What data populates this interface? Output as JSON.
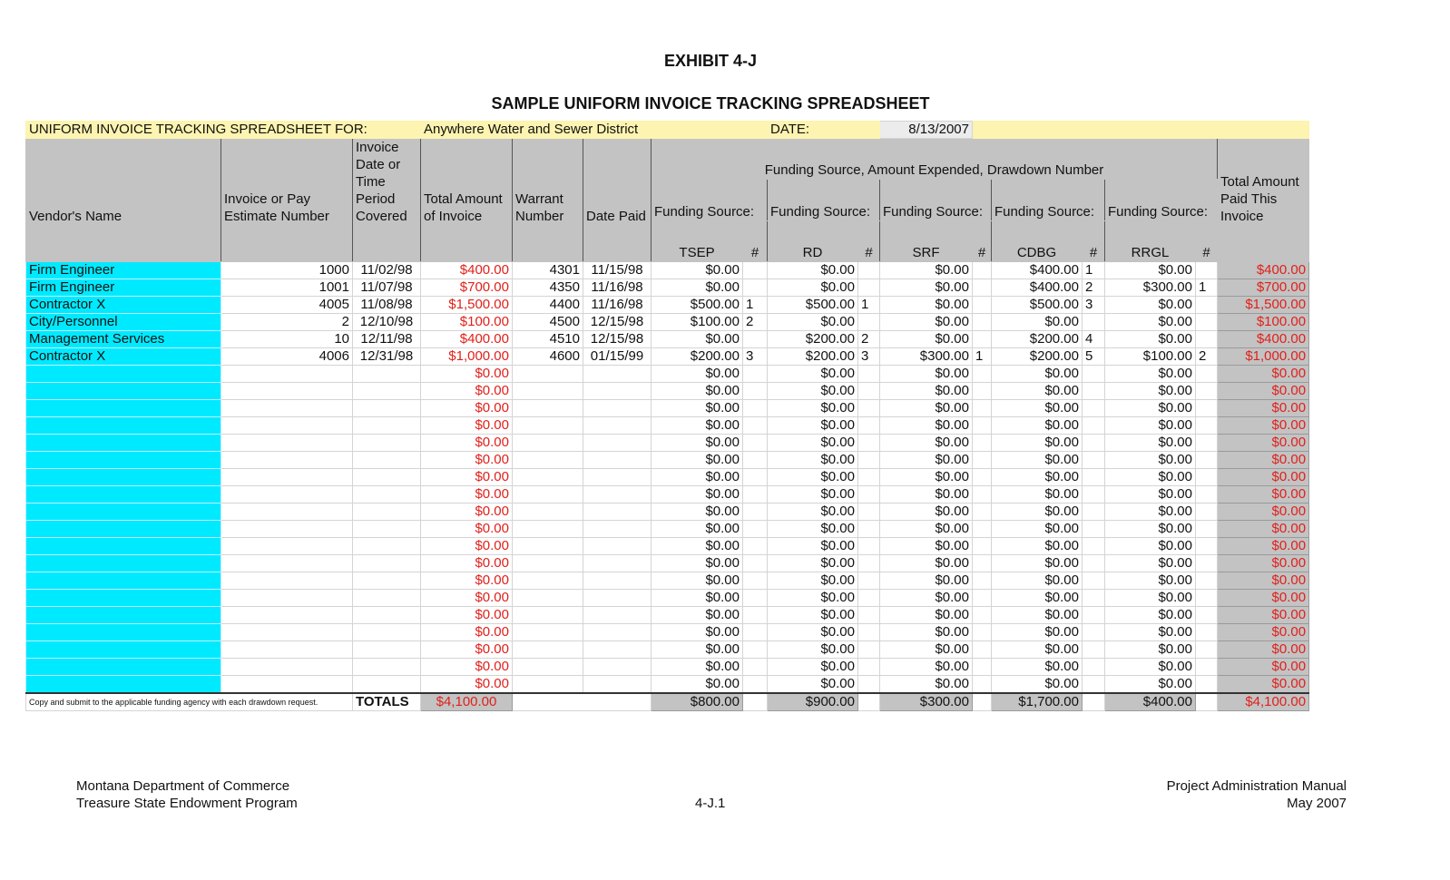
{
  "header": {
    "exhibit": "EXHIBIT 4-J",
    "title": "SAMPLE UNIFORM INVOICE TRACKING SPREADSHEET"
  },
  "info": {
    "label": "UNIFORM INVOICE TRACKING SPREADSHEET FOR:",
    "district": "Anywhere Water and Sewer District",
    "date_label": "DATE:",
    "date": "8/13/2007"
  },
  "table": {
    "columns": [
      "Vendor's Name",
      "Invoice or Pay Estimate Number",
      "Invoice Date or Time Period Covered",
      "Total Amount of Invoice",
      "Warrant Number",
      "Date Paid"
    ],
    "group_header": "Funding Source, Amount Expended, Drawdown Number",
    "sources": [
      {
        "label": "Funding Source:",
        "name": "TSEP",
        "num": "#"
      },
      {
        "label": "Funding Source:",
        "name": "RD",
        "num": "#"
      },
      {
        "label": "Funding Source:",
        "name": "SRF",
        "num": "#"
      },
      {
        "label": "Funding Source:",
        "name": "CDBG",
        "num": "#"
      },
      {
        "label": "Funding Source:",
        "name": "RRGL",
        "num": "#"
      }
    ],
    "total_header": "Total Amount Paid This Invoice",
    "rows": [
      [
        "Firm Engineer",
        "1000",
        "11/02/98",
        "$400.00",
        "4301",
        "11/15/98",
        "$0.00",
        null,
        "$0.00",
        null,
        "$0.00",
        null,
        "$400.00",
        "1",
        "$0.00",
        null,
        "$400.00"
      ],
      [
        "Firm Engineer",
        "1001",
        "11/07/98",
        "$700.00",
        "4350",
        "11/16/98",
        "$0.00",
        null,
        "$0.00",
        null,
        "$0.00",
        null,
        "$400.00",
        "2",
        "$300.00",
        "1",
        "$700.00"
      ],
      [
        "Contractor X",
        "4005",
        "11/08/98",
        "$1,500.00",
        "4400",
        "11/16/98",
        "$500.00",
        "1",
        "$500.00",
        "1",
        "$0.00",
        null,
        "$500.00",
        "3",
        "$0.00",
        null,
        "$1,500.00"
      ],
      [
        "City/Personnel",
        "2",
        "12/10/98",
        "$100.00",
        "4500",
        "12/15/98",
        "$100.00",
        "2",
        "$0.00",
        null,
        "$0.00",
        null,
        "$0.00",
        null,
        "$0.00",
        null,
        "$100.00"
      ],
      [
        "Management Services",
        "10",
        "12/11/98",
        "$400.00",
        "4510",
        "12/15/98",
        "$0.00",
        null,
        "$200.00",
        "2",
        "$0.00",
        null,
        "$200.00",
        "4",
        "$0.00",
        null,
        "$400.00"
      ],
      [
        "Contractor X",
        "4006",
        "12/31/98",
        "$1,000.00",
        "4600",
        "01/15/99",
        "$200.00",
        "3",
        "$200.00",
        "3",
        "$300.00",
        "1",
        "$200.00",
        "5",
        "$100.00",
        "2",
        "$1,000.00"
      ],
      [
        null,
        null,
        null,
        "$0.00",
        null,
        null,
        "$0.00",
        null,
        "$0.00",
        null,
        "$0.00",
        null,
        "$0.00",
        null,
        "$0.00",
        null,
        "$0.00"
      ],
      [
        null,
        null,
        null,
        "$0.00",
        null,
        null,
        "$0.00",
        null,
        "$0.00",
        null,
        "$0.00",
        null,
        "$0.00",
        null,
        "$0.00",
        null,
        "$0.00"
      ],
      [
        null,
        null,
        null,
        "$0.00",
        null,
        null,
        "$0.00",
        null,
        "$0.00",
        null,
        "$0.00",
        null,
        "$0.00",
        null,
        "$0.00",
        null,
        "$0.00"
      ],
      [
        null,
        null,
        null,
        "$0.00",
        null,
        null,
        "$0.00",
        null,
        "$0.00",
        null,
        "$0.00",
        null,
        "$0.00",
        null,
        "$0.00",
        null,
        "$0.00"
      ],
      [
        null,
        null,
        null,
        "$0.00",
        null,
        null,
        "$0.00",
        null,
        "$0.00",
        null,
        "$0.00",
        null,
        "$0.00",
        null,
        "$0.00",
        null,
        "$0.00"
      ],
      [
        null,
        null,
        null,
        "$0.00",
        null,
        null,
        "$0.00",
        null,
        "$0.00",
        null,
        "$0.00",
        null,
        "$0.00",
        null,
        "$0.00",
        null,
        "$0.00"
      ],
      [
        null,
        null,
        null,
        "$0.00",
        null,
        null,
        "$0.00",
        null,
        "$0.00",
        null,
        "$0.00",
        null,
        "$0.00",
        null,
        "$0.00",
        null,
        "$0.00"
      ],
      [
        null,
        null,
        null,
        "$0.00",
        null,
        null,
        "$0.00",
        null,
        "$0.00",
        null,
        "$0.00",
        null,
        "$0.00",
        null,
        "$0.00",
        null,
        "$0.00"
      ],
      [
        null,
        null,
        null,
        "$0.00",
        null,
        null,
        "$0.00",
        null,
        "$0.00",
        null,
        "$0.00",
        null,
        "$0.00",
        null,
        "$0.00",
        null,
        "$0.00"
      ],
      [
        null,
        null,
        null,
        "$0.00",
        null,
        null,
        "$0.00",
        null,
        "$0.00",
        null,
        "$0.00",
        null,
        "$0.00",
        null,
        "$0.00",
        null,
        "$0.00"
      ],
      [
        null,
        null,
        null,
        "$0.00",
        null,
        null,
        "$0.00",
        null,
        "$0.00",
        null,
        "$0.00",
        null,
        "$0.00",
        null,
        "$0.00",
        null,
        "$0.00"
      ],
      [
        null,
        null,
        null,
        "$0.00",
        null,
        null,
        "$0.00",
        null,
        "$0.00",
        null,
        "$0.00",
        null,
        "$0.00",
        null,
        "$0.00",
        null,
        "$0.00"
      ],
      [
        null,
        null,
        null,
        "$0.00",
        null,
        null,
        "$0.00",
        null,
        "$0.00",
        null,
        "$0.00",
        null,
        "$0.00",
        null,
        "$0.00",
        null,
        "$0.00"
      ],
      [
        null,
        null,
        null,
        "$0.00",
        null,
        null,
        "$0.00",
        null,
        "$0.00",
        null,
        "$0.00",
        null,
        "$0.00",
        null,
        "$0.00",
        null,
        "$0.00"
      ],
      [
        null,
        null,
        null,
        "$0.00",
        null,
        null,
        "$0.00",
        null,
        "$0.00",
        null,
        "$0.00",
        null,
        "$0.00",
        null,
        "$0.00",
        null,
        "$0.00"
      ],
      [
        null,
        null,
        null,
        "$0.00",
        null,
        null,
        "$0.00",
        null,
        "$0.00",
        null,
        "$0.00",
        null,
        "$0.00",
        null,
        "$0.00",
        null,
        "$0.00"
      ],
      [
        null,
        null,
        null,
        "$0.00",
        null,
        null,
        "$0.00",
        null,
        "$0.00",
        null,
        "$0.00",
        null,
        "$0.00",
        null,
        "$0.00",
        null,
        "$0.00"
      ],
      [
        null,
        null,
        null,
        "$0.00",
        null,
        null,
        "$0.00",
        null,
        "$0.00",
        null,
        "$0.00",
        null,
        "$0.00",
        null,
        "$0.00",
        null,
        "$0.00"
      ],
      [
        null,
        null,
        null,
        "$0.00",
        null,
        null,
        "$0.00",
        null,
        "$0.00",
        null,
        "$0.00",
        null,
        "$0.00",
        null,
        "$0.00",
        null,
        "$0.00"
      ]
    ],
    "totals": {
      "note": "Copy and submit to the applicable funding agency with each drawdown request.",
      "label": "TOTALS",
      "invoice_total": "$4,100.00",
      "sources": [
        "$800.00",
        "$900.00",
        "$300.00",
        "$1,700.00",
        "$400.00"
      ],
      "paid_total": "$4,100.00"
    }
  },
  "footer": {
    "left": [
      "Montana Department of Commerce",
      "Treasure State Endowment Program"
    ],
    "center": "4-J.1",
    "right": [
      "Project Administration Manual",
      "May 2007"
    ]
  }
}
